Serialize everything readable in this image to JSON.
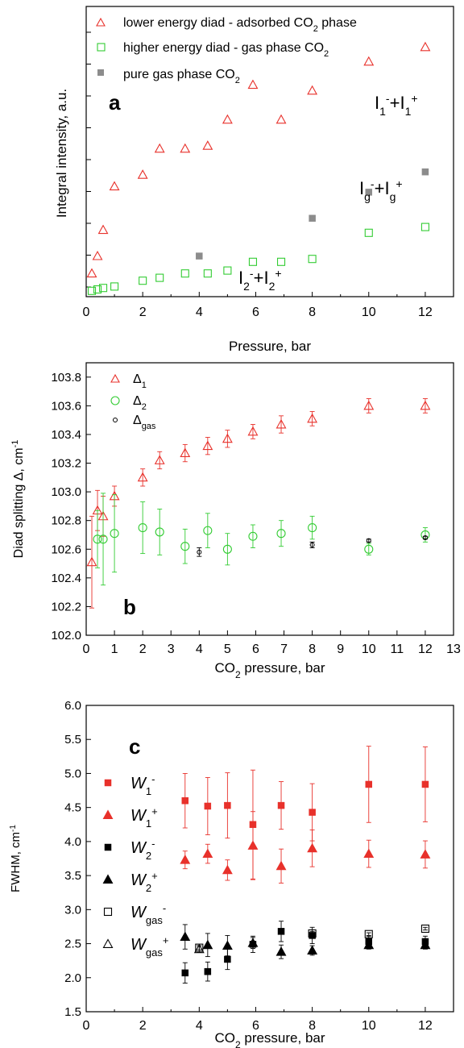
{
  "colors": {
    "red": "#e8312b",
    "green": "#33cc33",
    "grey": "#8c8c8c",
    "black": "#000000"
  },
  "chart_data": [
    {
      "id": "a",
      "type": "scatter",
      "panel_label": "a",
      "xlabel": "Pressure, bar",
      "ylabel": "Integral intensity, a.u.",
      "xlim": [
        0,
        13
      ],
      "x_ticks": [
        0,
        2,
        4,
        6,
        8,
        10,
        12
      ],
      "y_tick_labels_shown": false,
      "legend_position": "top-left",
      "annotations": [
        {
          "id": "I1",
          "parts": [
            "I",
            "1",
            "-",
            "+I",
            "1",
            "+"
          ]
        },
        {
          "id": "Ig",
          "parts": [
            "I",
            "g",
            "-",
            "+I",
            "g",
            "+"
          ]
        },
        {
          "id": "I2",
          "parts": [
            "I",
            "2",
            "-",
            "+I",
            "2",
            "+"
          ]
        }
      ],
      "series": [
        {
          "name": "lower energy diad - adsorbed CO2 phase",
          "legend_parts": [
            "lower energy diad - adsorbed CO",
            "2",
            " phase"
          ],
          "marker": "open-triangle",
          "color": "red",
          "points": [
            [
              0.2,
              0.08
            ],
            [
              0.4,
              0.14
            ],
            [
              0.6,
              0.23
            ],
            [
              1.0,
              0.38
            ],
            [
              2.0,
              0.42
            ],
            [
              2.6,
              0.51
            ],
            [
              3.5,
              0.51
            ],
            [
              4.3,
              0.52
            ],
            [
              5.0,
              0.61
            ],
            [
              5.9,
              0.73
            ],
            [
              6.9,
              0.61
            ],
            [
              8.0,
              0.71
            ],
            [
              10.0,
              0.81
            ],
            [
              12.0,
              0.86
            ]
          ]
        },
        {
          "name": "higher energy diad - gas phase CO2",
          "legend_parts": [
            "higher energy diad - gas phase CO",
            "2",
            ""
          ],
          "marker": "open-square",
          "color": "green",
          "points": [
            [
              0.2,
              0.02
            ],
            [
              0.4,
              0.025
            ],
            [
              0.6,
              0.03
            ],
            [
              1.0,
              0.035
            ],
            [
              2.0,
              0.055
            ],
            [
              2.6,
              0.065
            ],
            [
              3.5,
              0.08
            ],
            [
              4.3,
              0.08
            ],
            [
              5.0,
              0.09
            ],
            [
              5.9,
              0.12
            ],
            [
              6.9,
              0.12
            ],
            [
              8.0,
              0.13
            ],
            [
              10.0,
              0.22
            ],
            [
              12.0,
              0.24
            ]
          ]
        },
        {
          "name": "pure gas phase CO2",
          "legend_parts": [
            "pure gas phase CO",
            "2",
            ""
          ],
          "marker": "filled-square",
          "color": "grey",
          "points": [
            [
              4.0,
              0.14
            ],
            [
              8.0,
              0.27
            ],
            [
              10.0,
              0.36
            ],
            [
              12.0,
              0.43
            ]
          ]
        }
      ]
    },
    {
      "id": "b",
      "type": "scatter",
      "panel_label": "b",
      "xlabel_parts": [
        "CO",
        "2",
        " pressure, bar"
      ],
      "ylabel_parts": [
        "Diad splitting Δ, cm",
        "-1"
      ],
      "xlim": [
        0,
        13
      ],
      "ylim": [
        102.0,
        103.9
      ],
      "x_ticks": [
        0,
        1,
        2,
        3,
        4,
        5,
        6,
        7,
        8,
        9,
        10,
        11,
        12,
        13
      ],
      "y_ticks": [
        102.0,
        102.2,
        102.4,
        102.6,
        102.8,
        103.0,
        103.2,
        103.4,
        103.6,
        103.8
      ],
      "y_tick_decimals": 1,
      "legend_position": "top-left",
      "series": [
        {
          "name": "Δ1",
          "legend_parts": [
            "Δ",
            "1"
          ],
          "marker": "open-triangle",
          "color": "red",
          "points": [
            [
              0.2,
              102.51,
              0.32
            ],
            [
              0.4,
              102.87,
              0.14
            ],
            [
              0.6,
              102.83,
              0.14
            ],
            [
              1.0,
              102.97,
              0.07
            ],
            [
              2.0,
              103.1,
              0.06
            ],
            [
              2.6,
              103.22,
              0.06
            ],
            [
              3.5,
              103.27,
              0.06
            ],
            [
              4.3,
              103.32,
              0.06
            ],
            [
              5.0,
              103.37,
              0.06
            ],
            [
              5.9,
              103.42,
              0.05
            ],
            [
              6.9,
              103.47,
              0.06
            ],
            [
              8.0,
              103.51,
              0.05
            ],
            [
              10.0,
              103.6,
              0.05
            ],
            [
              12.0,
              103.6,
              0.05
            ]
          ]
        },
        {
          "name": "Δ2",
          "legend_parts": [
            "Δ",
            "2"
          ],
          "marker": "open-circle",
          "color": "green",
          "points": [
            [
              0.4,
              102.67,
              0.2
            ],
            [
              0.6,
              102.67,
              0.32
            ],
            [
              1.0,
              102.71,
              0.27
            ],
            [
              2.0,
              102.75,
              0.18
            ],
            [
              2.6,
              102.72,
              0.16
            ],
            [
              3.5,
              102.62,
              0.12
            ],
            [
              4.3,
              102.73,
              0.12
            ],
            [
              5.0,
              102.6,
              0.11
            ],
            [
              5.9,
              102.69,
              0.08
            ],
            [
              6.9,
              102.71,
              0.09
            ],
            [
              8.0,
              102.75,
              0.08
            ],
            [
              10.0,
              102.6,
              0.04
            ],
            [
              12.0,
              102.7,
              0.05
            ]
          ]
        },
        {
          "name": "Δgas",
          "legend_parts": [
            "Δ",
            "gas"
          ],
          "marker": "small-open-circle",
          "color": "black",
          "points": [
            [
              4.0,
              102.58,
              0.03
            ],
            [
              8.0,
              102.63,
              0.02
            ],
            [
              10.0,
              102.66,
              0.01
            ],
            [
              12.0,
              102.68,
              0.01
            ]
          ]
        }
      ]
    },
    {
      "id": "c",
      "type": "scatter",
      "panel_label": "c",
      "xlabel_parts": [
        "CO",
        "2",
        " pressure, bar"
      ],
      "ylabel_parts": [
        "FWHM, cm",
        "-1"
      ],
      "xlim": [
        0,
        13
      ],
      "ylim": [
        1.5,
        6.0
      ],
      "x_ticks": [
        0,
        2,
        4,
        6,
        8,
        10,
        12
      ],
      "y_ticks": [
        1.5,
        2.0,
        2.5,
        3.0,
        3.5,
        4.0,
        4.5,
        5.0,
        5.5,
        6.0
      ],
      "y_tick_decimals": 1,
      "legend_position": "left",
      "series": [
        {
          "name": "W1-",
          "legend_parts": [
            "W",
            "1",
            "-"
          ],
          "marker": "filled-square",
          "color": "red",
          "points": [
            [
              3.5,
              4.6,
              0.4
            ],
            [
              4.3,
              4.52,
              0.42
            ],
            [
              5.0,
              4.53,
              0.48
            ],
            [
              5.9,
              4.25,
              0.8
            ],
            [
              6.9,
              4.53,
              0.35
            ],
            [
              8.0,
              4.43,
              0.42
            ],
            [
              10.0,
              4.84,
              0.56
            ],
            [
              12.0,
              4.84,
              0.55
            ]
          ]
        },
        {
          "name": "W1+",
          "legend_parts": [
            "W",
            "1",
            "+"
          ],
          "marker": "filled-triangle",
          "color": "red",
          "points": [
            [
              3.5,
              3.73,
              0.13
            ],
            [
              4.3,
              3.82,
              0.14
            ],
            [
              5.0,
              3.58,
              0.15
            ],
            [
              5.9,
              3.94,
              0.5
            ],
            [
              6.9,
              3.64,
              0.25
            ],
            [
              8.0,
              3.9,
              0.27
            ],
            [
              10.0,
              3.82,
              0.2
            ],
            [
              12.0,
              3.81,
              0.2
            ]
          ]
        },
        {
          "name": "W2-",
          "legend_parts": [
            "W",
            "2",
            "-"
          ],
          "marker": "filled-square",
          "color": "black",
          "points": [
            [
              3.5,
              2.07,
              0.15
            ],
            [
              4.3,
              2.09,
              0.14
            ],
            [
              5.0,
              2.27,
              0.15
            ],
            [
              5.9,
              2.49,
              0.12
            ],
            [
              6.9,
              2.68,
              0.15
            ],
            [
              8.0,
              2.62,
              0.12
            ],
            [
              10.0,
              2.53,
              0.08
            ],
            [
              12.0,
              2.53,
              0.08
            ]
          ]
        },
        {
          "name": "W2+",
          "legend_parts": [
            "W",
            "2",
            "+"
          ],
          "marker": "filled-triangle",
          "color": "black",
          "points": [
            [
              3.5,
              2.6,
              0.18
            ],
            [
              4.3,
              2.48,
              0.17
            ],
            [
              5.0,
              2.47,
              0.15
            ],
            [
              5.9,
              2.51,
              0.08
            ],
            [
              6.9,
              2.38,
              0.1
            ],
            [
              8.0,
              2.4,
              0.07
            ],
            [
              10.0,
              2.48,
              0.06
            ],
            [
              12.0,
              2.48,
              0.06
            ]
          ]
        },
        {
          "name": "Wgas-",
          "legend_parts": [
            "W",
            "gas",
            "-"
          ],
          "marker": "open-square",
          "color": "black",
          "points": [
            [
              4.0,
              2.44,
              0.03
            ],
            [
              8.0,
              2.65,
              0.03
            ],
            [
              10.0,
              2.64,
              0.02
            ],
            [
              12.0,
              2.72,
              0.02
            ]
          ]
        },
        {
          "name": "Wgas+",
          "legend_parts": [
            "W",
            "gas",
            "+"
          ],
          "marker": "open-triangle",
          "color": "black",
          "points": [
            [
              4.0,
              2.42,
              0.05
            ]
          ]
        }
      ]
    }
  ]
}
